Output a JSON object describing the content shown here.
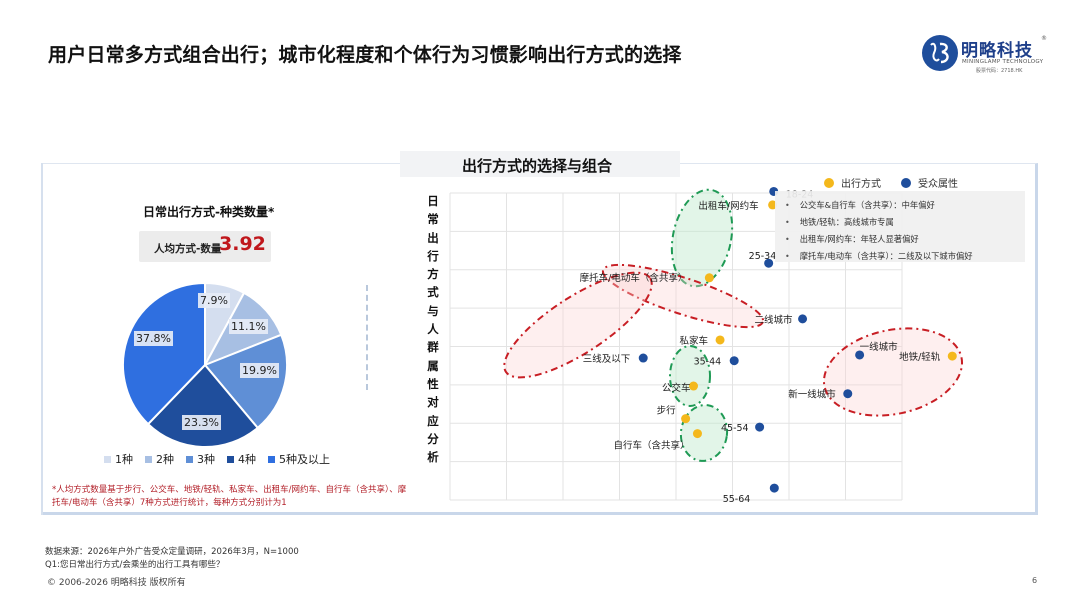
{
  "header": {
    "title": "用户日常多方式组合出行；城市化程度和个体行为习惯影响出行方式的选择",
    "logo": {
      "name": "明略科技",
      "registered": "®",
      "subtitle": "MININGLAMP TECHNOLOGY",
      "tagline": "股票代码：2718.HK"
    }
  },
  "section_header": "出行方式的选择与组合",
  "left_panel": {
    "title": "日常出行方式-种类数量*",
    "avg_label": "人均方式-数量",
    "avg_value": "3.92",
    "footnote": "*人均方式数量基于步行、公交车、地铁/轻轨、私家车、出租车/网约车、自行车（含共享）、摩托车/电动车（含共享）7种方式进行统计，每种方式分别计为1"
  },
  "right_panel": {
    "y_axis_title": "日常出行方式与人群属性对应分析",
    "series_legend": [
      {
        "label": "出行方式",
        "color": "#f4b81c"
      },
      {
        "label": "受众属性",
        "color": "#1f4e9c"
      }
    ],
    "insights": [
      "公交车&自行车（含共享）：中年偏好",
      "地铁/轻轨：高线城市专属",
      "出租车/网约车：年轻人显著偏好",
      "摩托车/电动车（含共享）：二线及以下城市偏好"
    ]
  },
  "footer": {
    "source": "数据来源：2026年户外广告受众定量调研，2026年3月，N=1000",
    "question": "Q1:您日常出行方式/会乘坐的出行工具有哪些？",
    "copyright": "© 2006-2026 明略科技 版权所有",
    "page_number": "6"
  },
  "chart_data": [
    {
      "type": "pie",
      "title": "日常出行方式-种类数量*",
      "categories": [
        "1种",
        "2种",
        "3种",
        "4种",
        "5种及以上"
      ],
      "values": [
        7.9,
        11.1,
        19.9,
        23.3,
        37.8
      ],
      "labels": [
        "7.9%",
        "11.1%",
        "19.9%",
        "23.3%",
        "37.8%"
      ],
      "colors": [
        "#d4deef",
        "#a7bfe3",
        "#5f8fd6",
        "#1f4e9c",
        "#2f6fe0"
      ],
      "legend_position": "bottom",
      "annotation": "人均方式-数量 3.92"
    },
    {
      "type": "scatter",
      "title": "出行方式的选择与组合",
      "ylabel": "日常出行方式与人群属性对应分析",
      "xlabel": "",
      "grid": true,
      "axis_ticks": "none (correspondence analysis map)",
      "legend_position": "top-right",
      "series": [
        {
          "name": "出行方式",
          "color": "#f4b81c",
          "points": [
            {
              "label": "出租车/网约车",
              "x": 5.71,
              "y": 7.69
            },
            {
              "label": "摩托车/电动车（含共享）",
              "x": 4.59,
              "y": 5.79
            },
            {
              "label": "私家车",
              "x": 4.78,
              "y": 4.17
            },
            {
              "label": "公交车",
              "x": 4.31,
              "y": 2.97
            },
            {
              "label": "步行",
              "x": 4.17,
              "y": 2.12
            },
            {
              "label": "自行车（含共享）",
              "x": 4.38,
              "y": 1.73
            },
            {
              "label": "地铁/轻轨",
              "x": 8.89,
              "y": 3.75
            }
          ]
        },
        {
          "name": "受众属性",
          "color": "#1f4e9c",
          "points": [
            {
              "label": "18-24",
              "x": 5.73,
              "y": 8.04
            },
            {
              "label": "25-34",
              "x": 5.64,
              "y": 6.17
            },
            {
              "label": "二线城市",
              "x": 6.24,
              "y": 4.72
            },
            {
              "label": "三线及以下",
              "x": 3.42,
              "y": 3.7
            },
            {
              "label": "35-44",
              "x": 5.03,
              "y": 3.63
            },
            {
              "label": "45-54",
              "x": 5.48,
              "y": 1.9
            },
            {
              "label": "55-64",
              "x": 5.74,
              "y": 0.31
            },
            {
              "label": "一线城市",
              "x": 7.25,
              "y": 3.78
            },
            {
              "label": "新一线城市",
              "x": 7.04,
              "y": 2.77
            }
          ]
        }
      ],
      "groupings": [
        {
          "type": "ellipse",
          "color": "green",
          "members": [
            "18-24",
            "出租车/网约车",
            "25-34"
          ]
        },
        {
          "type": "ellipse",
          "color": "red",
          "members": [
            "摩托车/电动车（含共享）",
            "二线城市"
          ]
        },
        {
          "type": "ellipse",
          "color": "red",
          "members": [
            "摩托车/电动车（含共享）",
            "三线及以下"
          ]
        },
        {
          "type": "ellipse",
          "color": "green",
          "members": [
            "35-44",
            "公交车"
          ]
        },
        {
          "type": "ellipse",
          "color": "green",
          "members": [
            "45-54",
            "自行车（含共享）"
          ]
        },
        {
          "type": "ellipse",
          "color": "red",
          "members": [
            "一线城市",
            "地铁/轻轨",
            "新一线城市"
          ]
        }
      ]
    }
  ]
}
